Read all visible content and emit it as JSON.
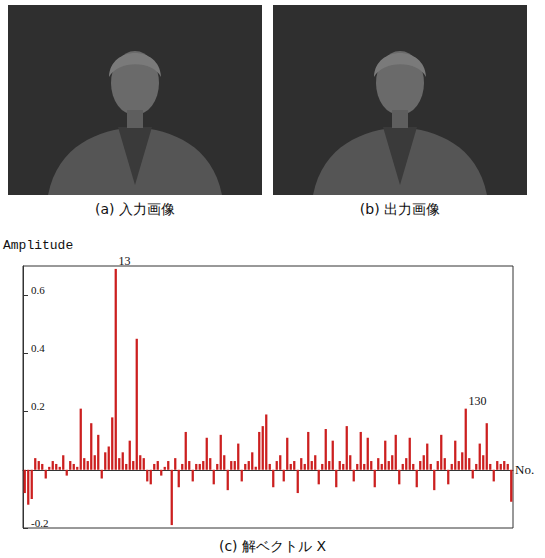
{
  "images": [
    {
      "caption": "(a) 入力画像"
    },
    {
      "caption": "(b) 出力画像"
    }
  ],
  "chart_data": {
    "type": "bar",
    "title": "(c) 解ベクトル X",
    "y_label": "Amplitude",
    "x_label": "No.",
    "categories": [
      null,
      null,
      null,
      null,
      null,
      null,
      null,
      null,
      null,
      null,
      null,
      null,
      null,
      null,
      null,
      null,
      null,
      null,
      null,
      null,
      null,
      null,
      null,
      null,
      null,
      null,
      null,
      null,
      null,
      null,
      null,
      null,
      null,
      null,
      null,
      null,
      null,
      null,
      null,
      null,
      null,
      null,
      null,
      null,
      null,
      null,
      null,
      null,
      null,
      null,
      null,
      null,
      null,
      null,
      null,
      null,
      null,
      null,
      null,
      null,
      null,
      null,
      null,
      null,
      null,
      null,
      null,
      null,
      null,
      null,
      null,
      null,
      null,
      null,
      null,
      null,
      null,
      null,
      null,
      null,
      null,
      null,
      null,
      null,
      null,
      null,
      null,
      null,
      null,
      null,
      null,
      null,
      null,
      null,
      null,
      null,
      null,
      null,
      null,
      null,
      null,
      null,
      null,
      null,
      null,
      null,
      null,
      null,
      null,
      null,
      null,
      null,
      null,
      null,
      null,
      null,
      null,
      null,
      null,
      null,
      null,
      null,
      null,
      null,
      null,
      null,
      null,
      null,
      null,
      null,
      null,
      null,
      null,
      null,
      null,
      null,
      null,
      null,
      null,
      null
    ],
    "values": [
      -0.08,
      -0.12,
      -0.1,
      0.04,
      0.03,
      0.02,
      -0.03,
      0.01,
      0.03,
      0.02,
      0.01,
      0.05,
      -0.02,
      0.03,
      0.02,
      0.01,
      0.21,
      0.04,
      0.03,
      0.16,
      0.05,
      0.12,
      -0.03,
      0.06,
      0.08,
      0.18,
      0.69,
      0.04,
      0.06,
      0.02,
      0.1,
      0.03,
      0.45,
      0.05,
      0.04,
      -0.04,
      -0.05,
      0.02,
      0.03,
      -0.02,
      0.01,
      0.03,
      -0.19,
      0.04,
      -0.06,
      0.02,
      0.13,
      0.03,
      -0.04,
      0.02,
      0.02,
      0.03,
      0.11,
      0.04,
      -0.05,
      0.02,
      0.12,
      0.05,
      -0.07,
      0.03,
      0.03,
      0.09,
      -0.04,
      0.02,
      0.03,
      0.06,
      0.01,
      0.13,
      0.15,
      0.19,
      0.02,
      -0.06,
      0.03,
      0.05,
      -0.04,
      0.11,
      0.02,
      0.03,
      -0.08,
      0.04,
      0.02,
      0.13,
      0.03,
      0.05,
      -0.05,
      0.02,
      0.14,
      0.03,
      0.1,
      -0.06,
      0.03,
      0.02,
      0.15,
      0.05,
      -0.04,
      0.02,
      0.13,
      0.02,
      0.11,
      0.03,
      -0.06,
      0.04,
      0.02,
      0.1,
      0.03,
      0.05,
      0.12,
      -0.05,
      0.02,
      0.04,
      0.11,
      0.02,
      -0.06,
      0.03,
      0.05,
      0.09,
      0.02,
      -0.07,
      0.03,
      0.12,
      0.04,
      -0.05,
      0.02,
      0.1,
      0.03,
      0.06,
      0.21,
      0.04,
      -0.03,
      0.02,
      0.09,
      0.05,
      0.16,
      0.02,
      -0.04,
      0.03,
      0.02,
      0.03,
      0.02,
      -0.11
    ],
    "annotations": [
      {
        "text": "13",
        "index": 26
      },
      {
        "text": "130",
        "index": 126
      }
    ],
    "color": "#cc1f1f",
    "ylim": [
      -0.2,
      0.7
    ],
    "yticks": [
      -0.2,
      0.2,
      0.4,
      0.6
    ],
    "grid": false,
    "tick_labels": "y"
  }
}
